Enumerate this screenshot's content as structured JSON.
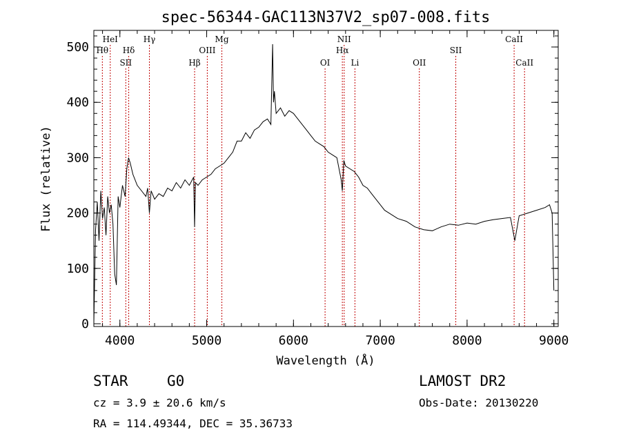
{
  "chart_data": {
    "type": "line",
    "title": "spec-56344-GAC113N37V2_sp07-008.fits",
    "xlabel": "Wavelength (Å)",
    "ylabel": "Flux (relative)",
    "xlim": [
      3700,
      9050
    ],
    "ylim": [
      -5,
      530
    ],
    "xticks": [
      4000,
      5000,
      6000,
      7000,
      8000,
      9000
    ],
    "yticks": [
      0,
      100,
      200,
      300,
      400,
      500
    ],
    "line_color": "#000000",
    "marker_color": "#c00000",
    "grid": false,
    "series": [
      {
        "x": [
          3700,
          3720,
          3740,
          3760,
          3780,
          3800,
          3820,
          3840,
          3860,
          3880,
          3900,
          3920,
          3940,
          3960,
          3980,
          4000,
          4030,
          4060,
          4080,
          4100,
          4120,
          4150,
          4200,
          4250,
          4300,
          4320,
          4340,
          4360,
          4400,
          4450,
          4500,
          4550,
          4600,
          4650,
          4700,
          4750,
          4800,
          4850,
          4861,
          4870,
          4900,
          4950,
          5000,
          5050,
          5100,
          5150,
          5200,
          5250,
          5300,
          5350,
          5400,
          5450,
          5500,
          5550,
          5600,
          5650,
          5700,
          5740,
          5760,
          5770,
          5780,
          5800,
          5850,
          5900,
          5950,
          6000,
          6050,
          6100,
          6150,
          6200,
          6250,
          6300,
          6350,
          6400,
          6450,
          6500,
          6550,
          6563,
          6580,
          6600,
          6650,
          6700,
          6750,
          6800,
          6850,
          6900,
          6950,
          7000,
          7050,
          7100,
          7150,
          7200,
          7300,
          7400,
          7500,
          7600,
          7700,
          7800,
          7900,
          8000,
          8100,
          8200,
          8300,
          8400,
          8500,
          8550,
          8600,
          8700,
          8800,
          8900,
          8950,
          8980,
          9000
        ],
        "y": [
          0,
          170,
          220,
          150,
          240,
          190,
          210,
          160,
          230,
          200,
          215,
          180,
          90,
          70,
          230,
          210,
          250,
          230,
          280,
          300,
          290,
          270,
          250,
          240,
          230,
          245,
          200,
          240,
          225,
          235,
          230,
          245,
          240,
          255,
          245,
          260,
          250,
          265,
          175,
          255,
          250,
          260,
          265,
          270,
          280,
          285,
          290,
          300,
          310,
          330,
          330,
          345,
          335,
          350,
          355,
          365,
          370,
          360,
          505,
          400,
          420,
          380,
          390,
          375,
          385,
          380,
          370,
          360,
          350,
          340,
          330,
          325,
          320,
          310,
          305,
          300,
          260,
          240,
          295,
          285,
          280,
          275,
          265,
          250,
          245,
          235,
          225,
          215,
          205,
          200,
          195,
          190,
          185,
          175,
          170,
          168,
          175,
          180,
          178,
          182,
          180,
          185,
          188,
          190,
          192,
          150,
          195,
          200,
          205,
          210,
          215,
          200,
          60
        ]
      }
    ],
    "line_markers": [
      {
        "label": "HeI",
        "x": 3889,
        "row": 0
      },
      {
        "label": "Hθ",
        "x": 3798,
        "row": 1
      },
      {
        "label": "Hδ",
        "x": 4102,
        "row": 1
      },
      {
        "label": "SII",
        "x": 4068,
        "row": 2
      },
      {
        "label": "Hγ",
        "x": 4340,
        "row": 0
      },
      {
        "label": "Hβ",
        "x": 4861,
        "row": 2
      },
      {
        "label": "OIII",
        "x": 5007,
        "row": 1
      },
      {
        "label": "Mg",
        "x": 5175,
        "row": 0
      },
      {
        "label": "OI",
        "x": 6364,
        "row": 2
      },
      {
        "label": "NII",
        "x": 6584,
        "row": 0
      },
      {
        "label": "Hα",
        "x": 6563,
        "row": 1
      },
      {
        "label": "Li",
        "x": 6708,
        "row": 2
      },
      {
        "label": "OII",
        "x": 7450,
        "row": 2
      },
      {
        "label": "SII",
        "x": 7870,
        "row": 1
      },
      {
        "label": "CaII",
        "x": 8542,
        "row": 0
      },
      {
        "label": "CaII",
        "x": 8662,
        "row": 2
      }
    ]
  },
  "info": {
    "class": "STAR",
    "subclass": "G0",
    "survey": "LAMOST DR2",
    "cz": "cz = 3.9 ± 20.6 km/s",
    "obs_date": "Obs-Date: 20130220",
    "coords": "RA = 114.49344, DEC =  35.36733"
  }
}
